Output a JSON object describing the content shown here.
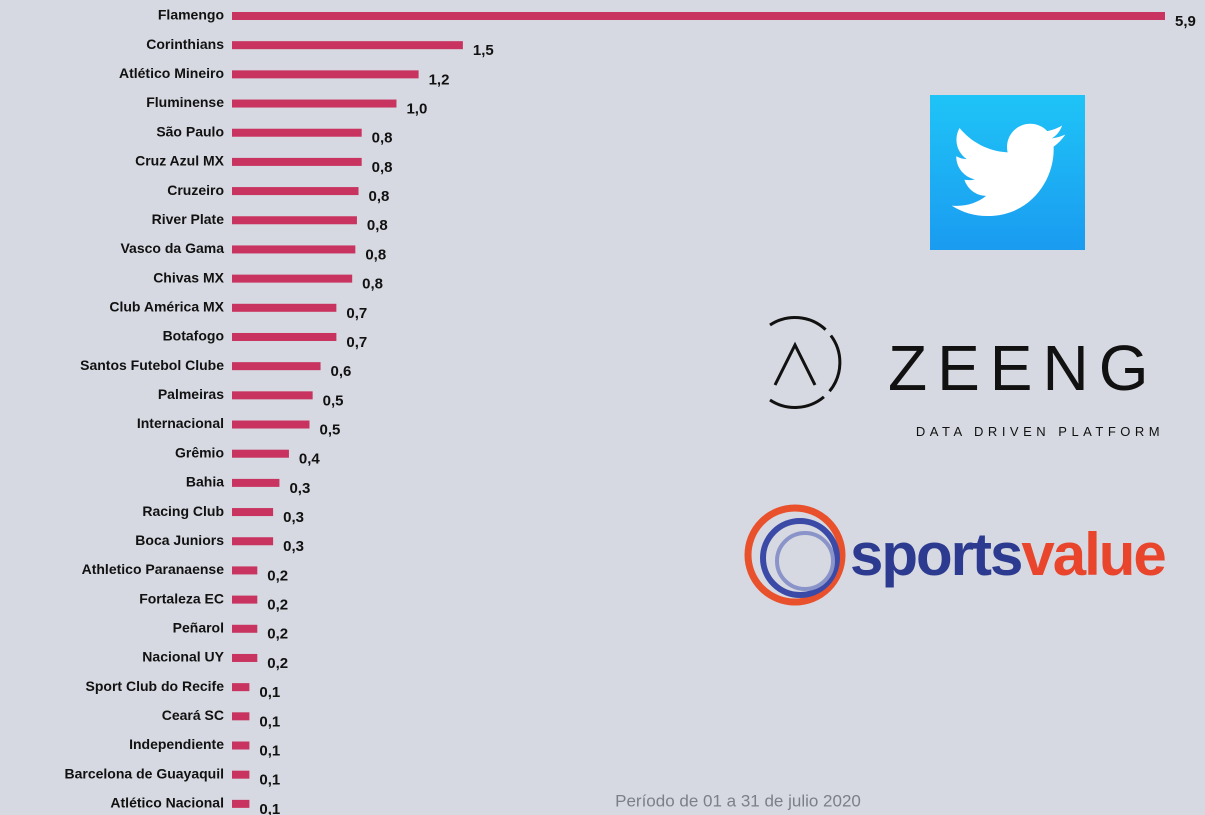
{
  "chart_data": {
    "type": "barh",
    "categories": [
      "Flamengo",
      "Corinthians",
      "Atlético Mineiro",
      "Fluminense",
      "São Paulo",
      "Cruz Azul MX",
      "Cruzeiro",
      "River Plate",
      "Vasco da Gama",
      "Chivas MX",
      "Club América MX",
      "Botafogo",
      "Santos Futebol Clube",
      "Palmeiras",
      "Internacional",
      "Grêmio",
      "Bahia",
      "Racing Club",
      "Boca Juniors",
      "Athletico Paranaense",
      "Fortaleza EC",
      "Peñarol",
      "Nacional UY",
      "Sport Club do Recife",
      "Ceará SC",
      "Independiente",
      "Barcelona de Guayaquil",
      "Atlético Nacional"
    ],
    "values": [
      5.9,
      1.46,
      1.18,
      1.04,
      0.82,
      0.82,
      0.8,
      0.79,
      0.78,
      0.76,
      0.66,
      0.66,
      0.56,
      0.51,
      0.49,
      0.36,
      0.3,
      0.26,
      0.26,
      0.16,
      0.16,
      0.16,
      0.16,
      0.11,
      0.11,
      0.11,
      0.11,
      0.11
    ],
    "value_labels": [
      "5,9",
      "1,5",
      "1,2",
      "1,0",
      "0,8",
      "0,8",
      "0,8",
      "0,8",
      "0,8",
      "0,8",
      "0,7",
      "0,7",
      "0,6",
      "0,5",
      "0,5",
      "0,4",
      "0,3",
      "0,3",
      "0,3",
      "0,2",
      "0,2",
      "0,2",
      "0,2",
      "0,1",
      "0,1",
      "0,1",
      "0,1",
      "0,1"
    ],
    "color": "#c8335f",
    "xlim": [
      0,
      5.9
    ],
    "footnote": "Período de 01 a 31 de julio 2020",
    "logos": [
      "ZEENG",
      "DATA DRIVEN PLATFORM",
      "sports",
      "value"
    ]
  }
}
